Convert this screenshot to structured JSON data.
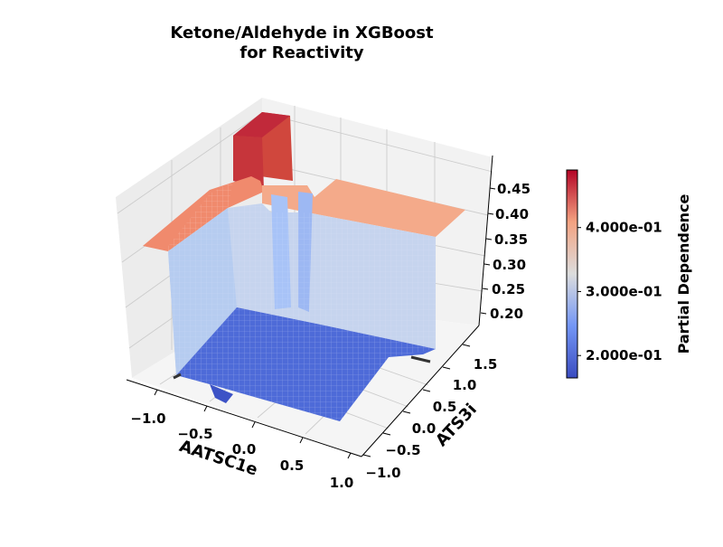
{
  "chart_data": {
    "type": "surface",
    "title_lines": [
      "Ketone/Aldehyde in XGBoost",
      "for Reactivity"
    ],
    "xlabel": "AATSC1e",
    "ylabel": "ATS3i",
    "zlabel": "",
    "x_ticks": [
      "−1.0",
      "−0.5",
      "0.0",
      "0.5",
      "1.0"
    ],
    "y_ticks": [
      "−1.0",
      "−0.5",
      "0.0",
      "0.5",
      "1.0",
      "1.5"
    ],
    "z_ticks": [
      "0.20",
      "0.25",
      "0.30",
      "0.35",
      "0.40",
      "0.45"
    ],
    "colorbar": {
      "label": "Partial Dependence",
      "ticks": [
        "2.000e-01",
        "3.000e-01",
        "4.000e-01"
      ],
      "tick_values": [
        0.2,
        0.3,
        0.4
      ],
      "range": [
        0.165,
        0.49
      ],
      "colormap": "coolwarm"
    },
    "surface_regions": [
      {
        "name": "high-x-low-y plateau",
        "value": 0.18
      },
      {
        "name": "low-x-low-y plateau",
        "value": 0.18
      },
      {
        "name": "mid plateau",
        "value": 0.31
      },
      {
        "name": "high-y plateau",
        "value": 0.37
      },
      {
        "name": "peak",
        "value": 0.485
      }
    ]
  }
}
